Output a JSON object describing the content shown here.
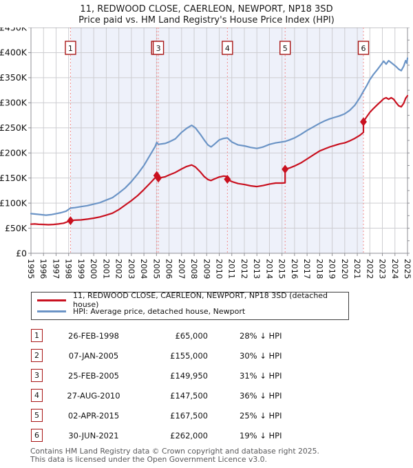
{
  "title": {
    "line1": "11, REDWOOD CLOSE, CAERLEON, NEWPORT, NP18 3SD",
    "line2": "Price paid vs. HM Land Registry's House Price Index (HPI)"
  },
  "chart_data": {
    "type": "line",
    "title": "11, REDWOOD CLOSE, CAERLEON, NEWPORT, NP18 3SD — Price paid vs. HM Land Registry's House Price Index (HPI)",
    "units": "GBP thousands",
    "x_axis": {
      "range": [
        1995,
        2025
      ],
      "ticks": [
        1995,
        1996,
        1997,
        1998,
        1999,
        2000,
        2001,
        2002,
        2003,
        2004,
        2005,
        2006,
        2007,
        2008,
        2009,
        2010,
        2011,
        2012,
        2013,
        2014,
        2015,
        2016,
        2017,
        2018,
        2019,
        2020,
        2021,
        2022,
        2023,
        2024,
        2025
      ]
    },
    "y_axis": {
      "range": [
        0,
        450
      ],
      "grid": true,
      "ticks": [
        {
          "v": 0,
          "label": "£0"
        },
        {
          "v": 50,
          "label": "£50K"
        },
        {
          "v": 100,
          "label": "£100K"
        },
        {
          "v": 150,
          "label": "£150K"
        },
        {
          "v": 200,
          "label": "£200K"
        },
        {
          "v": 250,
          "label": "£250K"
        },
        {
          "v": 300,
          "label": "£300K"
        },
        {
          "v": 350,
          "label": "£350K"
        },
        {
          "v": 400,
          "label": "£400K"
        },
        {
          "v": 450,
          "label": "£450K"
        }
      ]
    },
    "shaded_region": {
      "from": 1998.15,
      "to": 2021.49,
      "color": "#eef1fa"
    },
    "colors": {
      "grid": "#cdcdd1",
      "border": "#8f8f94",
      "sale_line": "#f28b8b",
      "box_border": "#a81414"
    },
    "series": [
      {
        "name": "11, REDWOOD CLOSE, CAERLEON, NEWPORT, NP18 3SD (detached house)",
        "color": "#c9101f",
        "points": [
          [
            1995,
            58
          ],
          [
            1995.3,
            58.5
          ],
          [
            1995.6,
            57.8
          ],
          [
            1996,
            57.5
          ],
          [
            1996.4,
            57
          ],
          [
            1996.8,
            57.5
          ],
          [
            1997.2,
            58.5
          ],
          [
            1997.6,
            60
          ],
          [
            1998.15,
            65
          ],
          [
            1998.5,
            66
          ],
          [
            1999,
            66.5
          ],
          [
            1999.5,
            68
          ],
          [
            2000,
            70
          ],
          [
            2000.5,
            72.5
          ],
          [
            2001,
            76
          ],
          [
            2001.5,
            80
          ],
          [
            2002,
            87
          ],
          [
            2002.5,
            96
          ],
          [
            2003,
            105
          ],
          [
            2003.5,
            115
          ],
          [
            2004,
            127
          ],
          [
            2004.5,
            140
          ],
          [
            2004.95,
            152
          ],
          [
            2005.02,
            155
          ],
          [
            2005.15,
            150
          ],
          [
            2005.4,
            151
          ],
          [
            2005.7,
            152.5
          ],
          [
            2006,
            156
          ],
          [
            2006.5,
            161
          ],
          [
            2007,
            168
          ],
          [
            2007.4,
            173
          ],
          [
            2007.8,
            176
          ],
          [
            2008.1,
            172
          ],
          [
            2008.5,
            162
          ],
          [
            2008.8,
            153
          ],
          [
            2009.1,
            147
          ],
          [
            2009.35,
            145
          ],
          [
            2009.6,
            148
          ],
          [
            2010,
            152
          ],
          [
            2010.35,
            154
          ],
          [
            2010.65,
            153
          ],
          [
            2010.65,
            147.5
          ],
          [
            2011,
            143
          ],
          [
            2011.5,
            139
          ],
          [
            2012,
            137
          ],
          [
            2012.5,
            134.5
          ],
          [
            2013,
            133
          ],
          [
            2013.5,
            135
          ],
          [
            2014,
            138
          ],
          [
            2014.5,
            140
          ],
          [
            2015,
            140
          ],
          [
            2015.25,
            140.5
          ],
          [
            2015.25,
            167.5
          ],
          [
            2015.6,
            170
          ],
          [
            2016,
            174
          ],
          [
            2016.5,
            180
          ],
          [
            2017,
            188
          ],
          [
            2017.5,
            196
          ],
          [
            2018,
            204
          ],
          [
            2018.4,
            208
          ],
          [
            2018.8,
            212
          ],
          [
            2019.2,
            215
          ],
          [
            2019.6,
            218
          ],
          [
            2020,
            220
          ],
          [
            2020.4,
            224
          ],
          [
            2020.8,
            229
          ],
          [
            2021.2,
            235
          ],
          [
            2021.49,
            241
          ],
          [
            2021.49,
            262
          ],
          [
            2021.75,
            272
          ],
          [
            2022,
            281
          ],
          [
            2022.3,
            289
          ],
          [
            2022.6,
            296
          ],
          [
            2022.9,
            303
          ],
          [
            2023.1,
            308
          ],
          [
            2023.3,
            310
          ],
          [
            2023.5,
            307
          ],
          [
            2023.7,
            310
          ],
          [
            2023.9,
            307
          ],
          [
            2024.1,
            300
          ],
          [
            2024.3,
            294
          ],
          [
            2024.5,
            292
          ],
          [
            2024.7,
            299
          ],
          [
            2024.85,
            309
          ],
          [
            2025,
            314
          ]
        ]
      },
      {
        "name": "HPI: Average price, detached house, Newport",
        "color": "#6b94c6",
        "points": [
          [
            1995,
            79
          ],
          [
            1995.4,
            78
          ],
          [
            1995.8,
            77
          ],
          [
            1996.2,
            76
          ],
          [
            1996.6,
            77
          ],
          [
            1997,
            79
          ],
          [
            1997.4,
            81
          ],
          [
            1997.8,
            84
          ],
          [
            1998.15,
            90
          ],
          [
            1998.5,
            91
          ],
          [
            1999,
            93
          ],
          [
            1999.5,
            95
          ],
          [
            2000,
            98
          ],
          [
            2000.5,
            101
          ],
          [
            2001,
            106
          ],
          [
            2001.5,
            111
          ],
          [
            2002,
            120
          ],
          [
            2002.5,
            130
          ],
          [
            2003,
            143
          ],
          [
            2003.5,
            158
          ],
          [
            2004,
            175
          ],
          [
            2004.5,
            196
          ],
          [
            2004.9,
            213
          ],
          [
            2005.02,
            221
          ],
          [
            2005.15,
            217
          ],
          [
            2005.4,
            218
          ],
          [
            2005.7,
            219
          ],
          [
            2006,
            222
          ],
          [
            2006.5,
            228
          ],
          [
            2007,
            241
          ],
          [
            2007.4,
            249
          ],
          [
            2007.8,
            255
          ],
          [
            2008.1,
            250
          ],
          [
            2008.5,
            237
          ],
          [
            2008.8,
            226
          ],
          [
            2009.1,
            216
          ],
          [
            2009.35,
            212
          ],
          [
            2009.6,
            217
          ],
          [
            2010,
            226
          ],
          [
            2010.35,
            229
          ],
          [
            2010.65,
            230
          ],
          [
            2011,
            222
          ],
          [
            2011.5,
            216
          ],
          [
            2012,
            214
          ],
          [
            2012.5,
            211
          ],
          [
            2013,
            209
          ],
          [
            2013.5,
            212
          ],
          [
            2014,
            217
          ],
          [
            2014.5,
            220
          ],
          [
            2015,
            222
          ],
          [
            2015.25,
            223
          ],
          [
            2015.6,
            226
          ],
          [
            2016,
            230
          ],
          [
            2016.5,
            237
          ],
          [
            2017,
            245
          ],
          [
            2017.5,
            252
          ],
          [
            2018,
            259
          ],
          [
            2018.4,
            264
          ],
          [
            2018.8,
            268
          ],
          [
            2019.2,
            271
          ],
          [
            2019.6,
            274
          ],
          [
            2020,
            278
          ],
          [
            2020.4,
            285
          ],
          [
            2020.8,
            295
          ],
          [
            2021.2,
            310
          ],
          [
            2021.49,
            323
          ],
          [
            2021.75,
            334
          ],
          [
            2022,
            346
          ],
          [
            2022.3,
            357
          ],
          [
            2022.6,
            366
          ],
          [
            2022.9,
            376
          ],
          [
            2023.1,
            383
          ],
          [
            2023.3,
            377
          ],
          [
            2023.5,
            384
          ],
          [
            2023.7,
            380
          ],
          [
            2023.9,
            376
          ],
          [
            2024.1,
            372
          ],
          [
            2024.3,
            367
          ],
          [
            2024.5,
            364
          ],
          [
            2024.7,
            373
          ],
          [
            2024.85,
            384
          ],
          [
            2024.95,
            379
          ],
          [
            2025,
            389
          ]
        ]
      }
    ],
    "sales": [
      {
        "num": "1",
        "x": 1998.15,
        "price_k": 65,
        "date": "26-FEB-1998",
        "price": "£65,000",
        "hpi_delta": "28% ↓ HPI"
      },
      {
        "num": "2",
        "x": 2005.02,
        "price_k": 155,
        "date": "07-JAN-2005",
        "price": "£155,000",
        "hpi_delta": "30% ↓ HPI"
      },
      {
        "num": "3",
        "x": 2005.15,
        "price_k": 149.95,
        "date": "25-FEB-2005",
        "price": "£149,950",
        "hpi_delta": "31% ↓ HPI"
      },
      {
        "num": "4",
        "x": 2010.65,
        "price_k": 147.5,
        "date": "27-AUG-2010",
        "price": "£147,500",
        "hpi_delta": "36% ↓ HPI"
      },
      {
        "num": "5",
        "x": 2015.25,
        "price_k": 167.5,
        "date": "02-APR-2015",
        "price": "£167,500",
        "hpi_delta": "25% ↓ HPI"
      },
      {
        "num": "6",
        "x": 2021.49,
        "price_k": 262,
        "date": "30-JUN-2021",
        "price": "£262,000",
        "hpi_delta": "19% ↓ HPI"
      }
    ],
    "legend_position": "below"
  },
  "legend": {
    "items": [
      {
        "label": "11, REDWOOD CLOSE, CAERLEON, NEWPORT, NP18 3SD (detached house)",
        "color": "#c9101f"
      },
      {
        "label": "HPI: Average price, detached house, Newport",
        "color": "#6b94c6"
      }
    ]
  },
  "footer": {
    "line1": "Contains HM Land Registry data © Crown copyright and database right 2025.",
    "line2": "This data is licensed under the Open Government Licence v3.0."
  }
}
